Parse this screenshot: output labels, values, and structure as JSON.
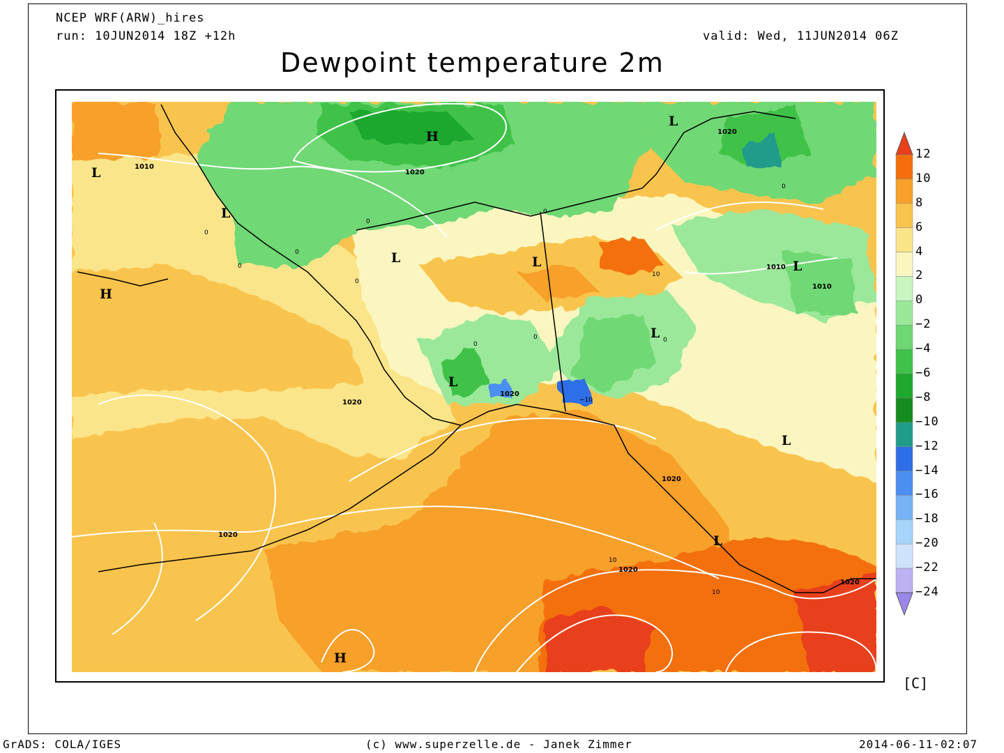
{
  "header": {
    "model": "NCEP WRF(ARW)_hires",
    "run": "run: 10JUN2014 18Z +12h",
    "valid": "valid: Wed, 11JUN2014 06Z",
    "title": "Dewpoint temperature 2m"
  },
  "colorbar": {
    "levels": [
      "12",
      "10",
      "8",
      "6",
      "4",
      "2",
      "0",
      "−2",
      "−4",
      "−6",
      "−8",
      "−10",
      "−12",
      "−14",
      "−16",
      "−18",
      "−20",
      "−22",
      "−24"
    ],
    "colors": [
      "#e8401c",
      "#f46f0c",
      "#f7a02a",
      "#f9c44e",
      "#fbe58a",
      "#fbf6c0",
      "#c9f5c0",
      "#9be89a",
      "#6fd874",
      "#3fc24a",
      "#1ea82d",
      "#148c1e",
      "#229c8a",
      "#2e6ee6",
      "#4c8ff0",
      "#77b3f4",
      "#a6d4fa",
      "#cfe2fb",
      "#bdb1f2",
      "#9b87ea"
    ],
    "unit": "[C]"
  },
  "map": {
    "pressure_labels": [
      "1010",
      "1020",
      "1020",
      "1020",
      "1020",
      "1010",
      "1010",
      "1020",
      "1020",
      "1020",
      "1020"
    ],
    "contour_zero_labels": [
      "0",
      "0",
      "0",
      "0",
      "0",
      "0",
      "0",
      "0",
      "0",
      "0",
      "10",
      "10",
      "10",
      "−10"
    ],
    "highs": [
      "H",
      "H",
      "H"
    ],
    "lows": [
      "L",
      "L",
      "L",
      "L",
      "L",
      "L",
      "L",
      "L",
      "L",
      "L"
    ]
  },
  "footer": {
    "left": "GrADS: COLA/IGES",
    "center": "(c) www.superzelle.de - Janek Zimmer",
    "right": "2014-06-11-02:07"
  }
}
